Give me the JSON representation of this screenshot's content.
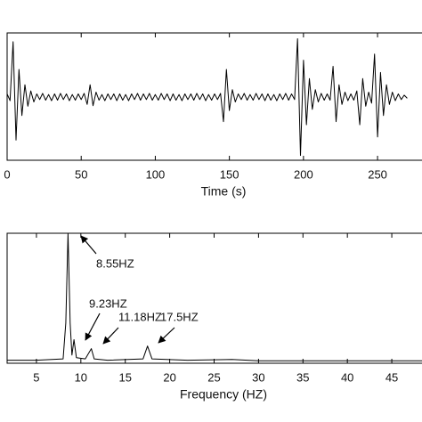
{
  "chart_data": [
    {
      "type": "line",
      "x_label": "Time (s)",
      "xlim": [
        0,
        280
      ],
      "xticks": [
        0,
        50,
        100,
        150,
        200,
        250
      ],
      "ylim": [
        -1,
        1
      ],
      "color": "#000000",
      "x": [
        0,
        2,
        4,
        6,
        8,
        10,
        12,
        14,
        16,
        18,
        20,
        22,
        24,
        26,
        28,
        30,
        32,
        34,
        36,
        38,
        40,
        42,
        44,
        46,
        48,
        50,
        52,
        54,
        56,
        58,
        60,
        62,
        64,
        66,
        68,
        70,
        72,
        74,
        76,
        78,
        80,
        82,
        84,
        86,
        88,
        90,
        92,
        94,
        96,
        98,
        100,
        102,
        104,
        106,
        108,
        110,
        112,
        114,
        116,
        118,
        120,
        122,
        124,
        126,
        128,
        130,
        132,
        134,
        136,
        138,
        140,
        142,
        144,
        146,
        148,
        150,
        152,
        154,
        156,
        158,
        160,
        162,
        164,
        166,
        168,
        170,
        172,
        174,
        176,
        178,
        180,
        182,
        184,
        186,
        188,
        190,
        192,
        194,
        196,
        198,
        200,
        202,
        204,
        206,
        208,
        210,
        212,
        214,
        216,
        218,
        220,
        222,
        224,
        226,
        228,
        230,
        232,
        234,
        236,
        238,
        240,
        242,
        244,
        246,
        248,
        250,
        252,
        254,
        256,
        258,
        260,
        262,
        264,
        266,
        268,
        270
      ],
      "values": [
        0.05,
        -0.06,
        0.9,
        -0.7,
        0.45,
        -0.3,
        0.2,
        -0.15,
        0.1,
        -0.08,
        0.05,
        -0.04,
        0.06,
        -0.05,
        0.04,
        -0.06,
        0.05,
        -0.05,
        0.06,
        -0.04,
        0.05,
        -0.06,
        0.04,
        -0.05,
        0.05,
        -0.04,
        0.06,
        -0.12,
        0.2,
        -0.14,
        0.08,
        -0.05,
        0.04,
        -0.06,
        0.05,
        -0.04,
        0.05,
        -0.06,
        0.05,
        -0.05,
        0.04,
        -0.06,
        0.05,
        -0.04,
        0.06,
        -0.05,
        0.05,
        -0.04,
        0.06,
        -0.05,
        0.04,
        -0.05,
        0.06,
        -0.04,
        0.05,
        -0.06,
        0.05,
        -0.05,
        0.04,
        -0.06,
        0.05,
        -0.04,
        0.05,
        -0.05,
        0.06,
        -0.04,
        0.05,
        -0.06,
        0.04,
        -0.05,
        0.05,
        -0.04,
        0.06,
        -0.4,
        0.45,
        -0.22,
        0.12,
        -0.08,
        0.05,
        -0.04,
        0.06,
        -0.05,
        0.04,
        -0.05,
        0.06,
        -0.04,
        0.05,
        -0.06,
        0.05,
        -0.05,
        0.04,
        -0.06,
        0.05,
        -0.04,
        0.06,
        -0.05,
        0.05,
        -0.04,
        0.95,
        -0.95,
        0.6,
        -0.45,
        0.3,
        -0.2,
        0.12,
        -0.08,
        0.06,
        -0.05,
        0.05,
        -0.05,
        0.5,
        -0.4,
        0.2,
        -0.12,
        0.08,
        -0.06,
        0.05,
        -0.05,
        0.1,
        -0.45,
        0.3,
        -0.15,
        0.08,
        -0.1,
        0.7,
        -0.65,
        0.4,
        -0.3,
        0.2,
        -0.12,
        0.08,
        -0.06,
        0.05,
        -0.04,
        0.03,
        -0.02
      ]
    },
    {
      "type": "line",
      "x_label": "Frequency (HZ)",
      "xlim": [
        1.7,
        48.4
      ],
      "xticks": [
        5,
        10,
        15,
        20,
        25,
        30,
        35,
        40,
        45
      ],
      "ylim": [
        0,
        1
      ],
      "color": "#000000",
      "x": [
        1.7,
        5,
        8,
        8.3,
        8.55,
        8.8,
        9.0,
        9.23,
        9.5,
        10.5,
        11.18,
        11.5,
        13,
        17.0,
        17.5,
        18,
        22,
        27,
        30,
        48.4
      ],
      "values": [
        0.01,
        0.01,
        0.02,
        0.3,
        1.0,
        0.3,
        0.05,
        0.17,
        0.03,
        0.02,
        0.1,
        0.02,
        0.01,
        0.02,
        0.12,
        0.02,
        0.01,
        0.015,
        0.005,
        0.005
      ],
      "annotations": [
        "8.55HZ",
        "9.23HZ",
        "11.18HZ",
        "17.5HZ"
      ]
    }
  ]
}
